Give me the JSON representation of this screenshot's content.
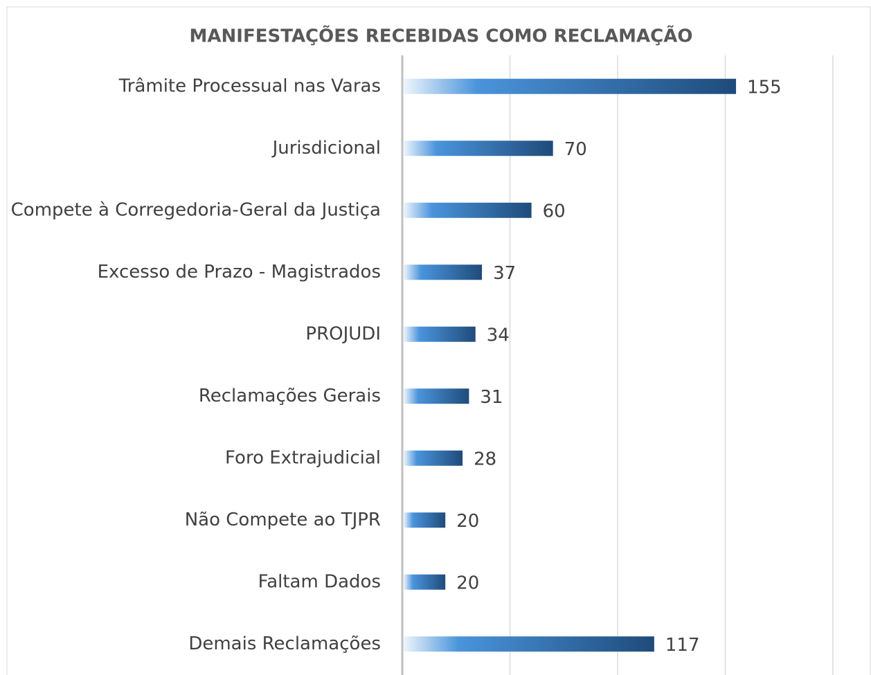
{
  "chart_data": {
    "type": "bar",
    "orientation": "horizontal",
    "title": "MANIFESTAÇÕES RECEBIDAS COMO RECLAMAÇÃO",
    "categories": [
      "Trâmite Processual nas Varas",
      "Jurisdicional",
      "Compete à Corregedoria-Geral da Justiça",
      "Excesso de Prazo - Magistrados",
      "PROJUDI",
      "Reclamações Gerais",
      "Foro Extrajudicial",
      "Não Compete ao TJPR",
      "Faltam Dados",
      "Demais Reclamações"
    ],
    "values": [
      155,
      70,
      60,
      37,
      34,
      31,
      28,
      20,
      20,
      117
    ],
    "gradient": [
      "#eef5fc",
      "#4a94dc",
      "#1f4b7a"
    ],
    "xlim": [
      0,
      200
    ],
    "xticks": [
      0,
      50,
      100,
      150,
      200
    ],
    "grid": true
  }
}
